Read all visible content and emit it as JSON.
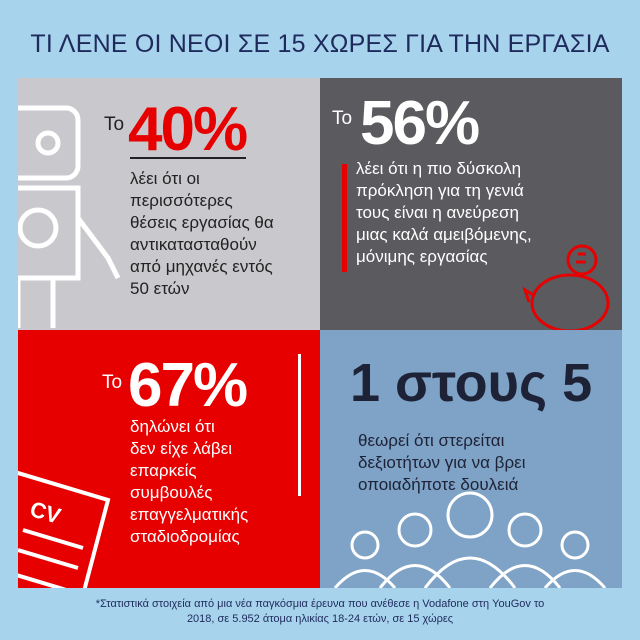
{
  "title": "ΤΙ ΛΕΝΕ ΟΙ ΝΕΟΙ ΣΕ 15 ΧΩΡΕΣ ΓΙΑ ΤΗΝ ΕΡΓΑΣΙΑ",
  "panels": [
    {
      "prefix": "Το",
      "figure": "40%",
      "lines": [
        "λέει ότι οι",
        "περισσότερες",
        "θέσεις εργασίας θα",
        "αντικατασταθούν",
        "από μηχανές εντός",
        "50 ετών"
      ]
    },
    {
      "prefix": "Το",
      "figure": "56%",
      "lines": [
        "λέει ότι η πιο δύσκολη",
        "πρόκληση για τη γενιά",
        "τους είναι η ανεύρεση",
        "μιας καλά αμειβόμενης,",
        "μόνιμης εργασίας"
      ]
    },
    {
      "prefix": "Το",
      "figure": "67%",
      "lines": [
        "δηλώνει ότι",
        "δεν είχε λάβει",
        "επαρκείς",
        "συμβουλές",
        "επαγγελματικής",
        "σταδιοδρομίας"
      ],
      "icon_label": "CV"
    },
    {
      "figure": "1 στους 5",
      "lines": [
        "θεωρεί ότι στερείται",
        "δεξιοτήτων για να βρει",
        "οποιαδήποτε δουλειά"
      ]
    }
  ],
  "footnote": [
    "*Στατιστικά στοιχεία από μια νέα παγκόσμια έρευνα που ανέθεσε η Vodafone στη YouGov το",
    "2018, σε 5.952 άτομα ηλικίας 18-24 ετών, σε 15 χώρες"
  ]
}
